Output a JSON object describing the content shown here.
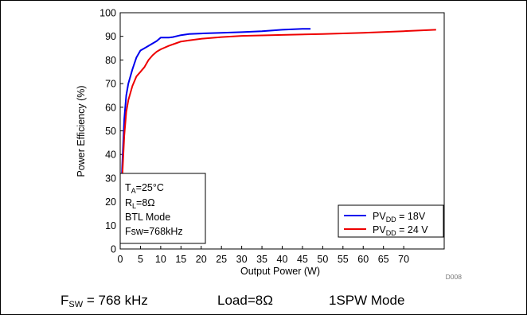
{
  "chart_data": {
    "type": "line",
    "xlabel": "Output Power (W)",
    "ylabel": "Power Efficiency (%)",
    "xlim": [
      0,
      80
    ],
    "ylim": [
      0,
      100
    ],
    "x_ticks": [
      "0",
      "5",
      "10",
      "15",
      "20",
      "25",
      "30",
      "35",
      "40",
      "45",
      "50",
      "55",
      "60",
      "65",
      "70"
    ],
    "y_ticks": [
      "0",
      "10",
      "20",
      "30",
      "40",
      "50",
      "60",
      "70",
      "80",
      "90",
      "100"
    ],
    "grid": false,
    "legend_placement": "bottom-right",
    "series": [
      {
        "name_main": "PV",
        "name_sub": "DD",
        "name_value": " = 18V",
        "color": "#0000ee",
        "points": [
          [
            0.2,
            20
          ],
          [
            0.5,
            35
          ],
          [
            1,
            55
          ],
          [
            1.5,
            65
          ],
          [
            2,
            70
          ],
          [
            3,
            76
          ],
          [
            4,
            81
          ],
          [
            5,
            84
          ],
          [
            6,
            85
          ],
          [
            7,
            86
          ],
          [
            8,
            87
          ],
          [
            9,
            88
          ],
          [
            10,
            89.5
          ],
          [
            12,
            89.5
          ],
          [
            13,
            89.7
          ],
          [
            15,
            90.5
          ],
          [
            17,
            91
          ],
          [
            20,
            91.2
          ],
          [
            25,
            91.5
          ],
          [
            30,
            91.8
          ],
          [
            35,
            92.2
          ],
          [
            40,
            92.8
          ],
          [
            45,
            93.2
          ],
          [
            47,
            93.2
          ]
        ]
      },
      {
        "name_main": "PV",
        "name_sub": "DD",
        "name_value": " = 24 V",
        "color": "#ee0000",
        "points": [
          [
            0.2,
            20
          ],
          [
            0.5,
            30
          ],
          [
            1,
            48
          ],
          [
            1.5,
            58
          ],
          [
            2,
            63
          ],
          [
            3,
            69
          ],
          [
            4,
            73
          ],
          [
            5,
            75
          ],
          [
            6,
            77
          ],
          [
            7,
            80
          ],
          [
            8,
            82
          ],
          [
            9,
            83.5
          ],
          [
            10,
            84.5
          ],
          [
            12,
            86
          ],
          [
            14,
            87.2
          ],
          [
            15,
            87.8
          ],
          [
            17,
            88.3
          ],
          [
            20,
            89
          ],
          [
            25,
            89.7
          ],
          [
            30,
            90.2
          ],
          [
            40,
            90.6
          ],
          [
            50,
            91
          ],
          [
            60,
            91.5
          ],
          [
            70,
            92.2
          ],
          [
            78,
            92.8
          ]
        ]
      }
    ],
    "conditions": {
      "ta_main": "T",
      "ta_sub": "A",
      "ta_value": "=25°C",
      "rl_main": "R",
      "rl_sub": "L",
      "rl_value": "=8Ω",
      "mode": "BTL Mode",
      "fsw": "Fsw=768kHz"
    },
    "figure_code": "D008"
  },
  "caption": {
    "fsw_main": "F",
    "fsw_sub": "SW",
    "fsw_value": " = 768 kHz",
    "load": "Load=8Ω",
    "mode": "1SPW Mode"
  }
}
